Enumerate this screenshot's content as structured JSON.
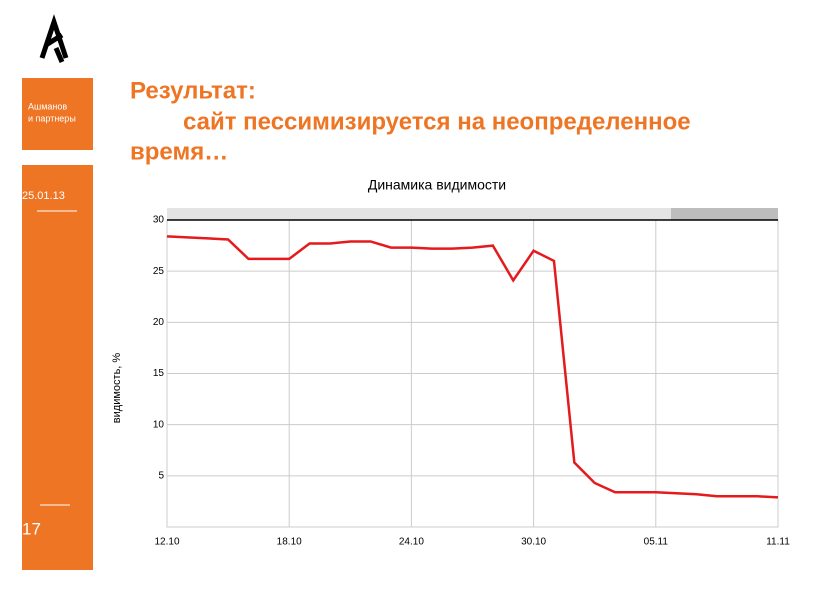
{
  "sidebar": {
    "brand_line1": "Ашманов",
    "brand_line2": "и партнеры",
    "date": "25.01.13",
    "page": "17"
  },
  "heading": {
    "line1": "Результат:",
    "line2": "сайт пессимизируется на неопределенное",
    "line3": "время…"
  },
  "chart_data": {
    "type": "line",
    "title": "Динамика видимости",
    "y_label": "видимость, %",
    "categories": [
      "12.10",
      null,
      null,
      null,
      null,
      null,
      "18.10",
      null,
      null,
      null,
      null,
      null,
      "24.10",
      null,
      null,
      null,
      null,
      null,
      "30.10",
      null,
      null,
      null,
      null,
      null,
      "05.11",
      null,
      null,
      null,
      null,
      null,
      "11.11"
    ],
    "series": [
      {
        "name": "видимость",
        "color": "#e41a1c",
        "values": [
          28.4,
          28.3,
          28.2,
          28.1,
          26.2,
          26.2,
          26.2,
          27.7,
          27.7,
          27.9,
          27.9,
          27.3,
          27.3,
          27.2,
          27.2,
          27.3,
          27.5,
          24.1,
          27.0,
          26.0,
          6.3,
          4.3,
          3.4,
          3.4,
          3.4,
          3.3,
          3.2,
          3.0,
          3.0,
          3.0,
          2.9
        ]
      }
    ],
    "ylim": [
      0,
      30
    ],
    "yticks": [
      5,
      10,
      15,
      20,
      25,
      30
    ],
    "grid": true
  }
}
